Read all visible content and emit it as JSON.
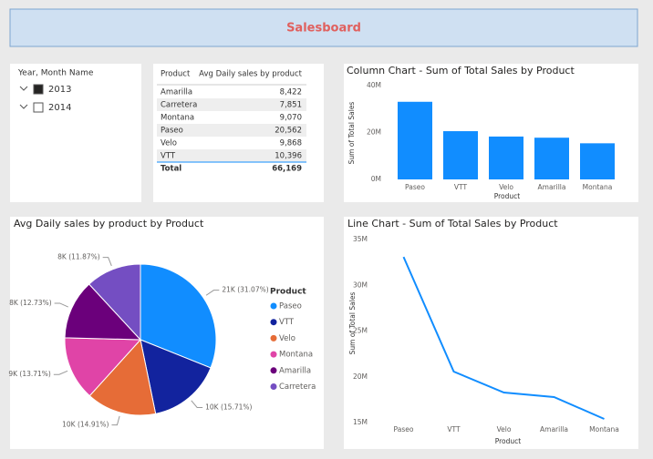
{
  "header": {
    "title": "Salesboard"
  },
  "slicer": {
    "title": "Year, Month Name",
    "items": [
      "2013",
      "2014"
    ],
    "checked": [
      true,
      false
    ]
  },
  "table": {
    "columns": [
      "Product",
      "Avg Daily sales by product"
    ],
    "rows": [
      [
        "Amarilla",
        "8,422"
      ],
      [
        "Carretera",
        "7,851"
      ],
      [
        "Montana",
        "9,070"
      ],
      [
        "Paseo",
        "20,562"
      ],
      [
        "Velo",
        "9,868"
      ],
      [
        "VTT",
        "10,396"
      ]
    ],
    "total": [
      "Total",
      "66,169"
    ]
  },
  "chart_data": [
    {
      "type": "bar",
      "title": "Column Chart - Sum of Total Sales by Product",
      "x_label": "Product",
      "y_label": "Sum of Total Sales",
      "categories": [
        "Paseo",
        "VTT",
        "Velo",
        "Amarilla",
        "Montana"
      ],
      "values": [
        33100000,
        20570000,
        18280000,
        17790000,
        15400000
      ],
      "color": "#118dff",
      "ylim": [
        0,
        40000000
      ],
      "yticks": [
        {
          "value": 0,
          "label": "0M"
        },
        {
          "value": 20000000,
          "label": "20M"
        },
        {
          "value": 40000000,
          "label": "40M"
        }
      ],
      "grid": false
    },
    {
      "type": "pie",
      "title": "Avg Daily sales by product by Product",
      "legend_title": "Product",
      "categories": [
        "Paseo",
        "VTT",
        "Velo",
        "Montana",
        "Amarilla",
        "Carretera"
      ],
      "values": [
        20562,
        10396,
        9868,
        9070,
        8422,
        7851
      ],
      "value_labels": [
        "21K (31.07%)",
        "10K (15.71%)",
        "10K (14.91%)",
        "9K (13.71%)",
        "8K (12.73%)",
        "8K (11.87%)"
      ],
      "colors": [
        "#118dff",
        "#12239e",
        "#e66c37",
        "#e044a7",
        "#6b007b",
        "#744ec2"
      ],
      "legend": "right"
    },
    {
      "type": "line",
      "title": "Line Chart - Sum of Total Sales by Product",
      "x_label": "Product",
      "y_label": "Sum of Total Sales",
      "categories": [
        "Paseo",
        "VTT",
        "Velo",
        "Amarilla",
        "Montana"
      ],
      "values": [
        33100000,
        20570000,
        18280000,
        17790000,
        15400000
      ],
      "color": "#118dff",
      "ylim": [
        15000000,
        35000000
      ],
      "yticks": [
        {
          "value": 15000000,
          "label": "15M"
        },
        {
          "value": 20000000,
          "label": "20M"
        },
        {
          "value": 25000000,
          "label": "25M"
        },
        {
          "value": 30000000,
          "label": "30M"
        },
        {
          "value": 35000000,
          "label": "35M"
        }
      ],
      "grid": false
    }
  ]
}
